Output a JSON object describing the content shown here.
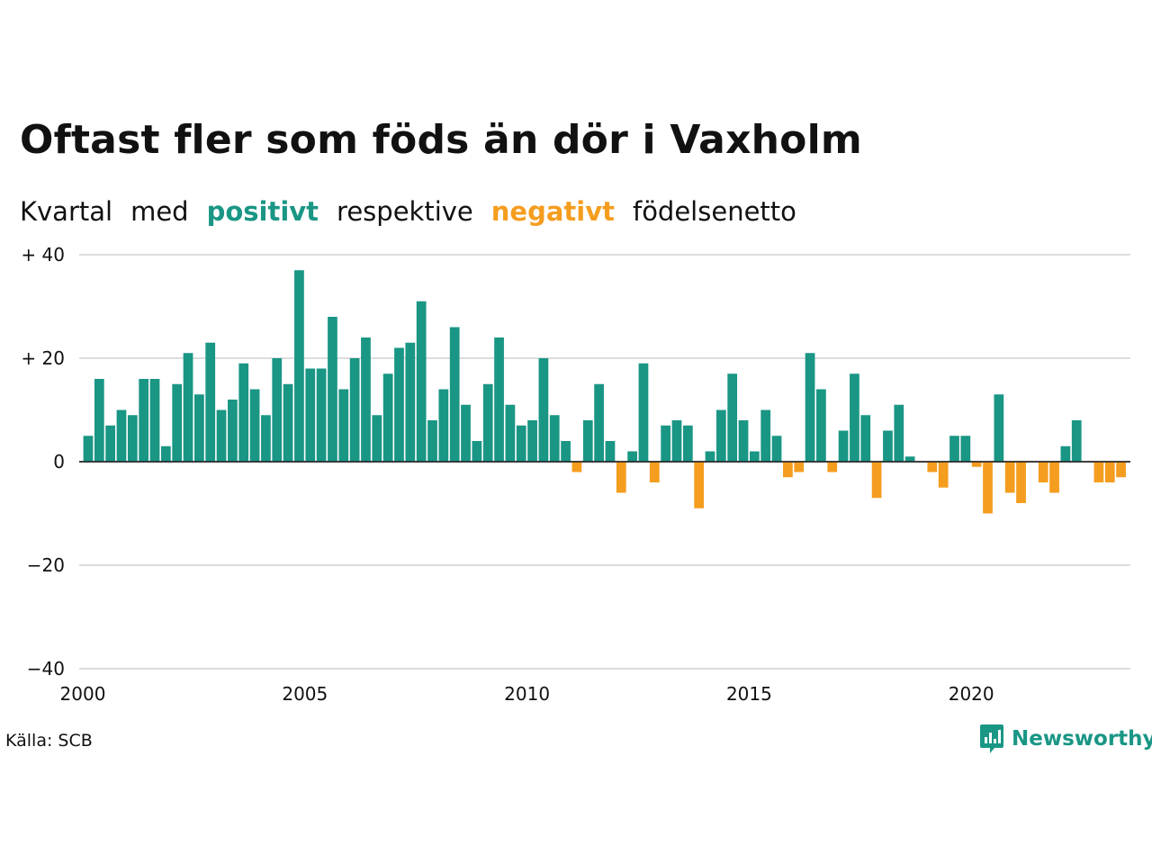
{
  "header": {
    "title": "Oftast fler som föds än dör i Vaxholm",
    "subtitle": {
      "part1": "Kvartal",
      "part2": "med",
      "positive": "positivt",
      "part3": "respektive",
      "negative": "negativt",
      "part4": "födelsenetto"
    }
  },
  "footer": {
    "source": "Källa: SCB",
    "logo_text": "Newsworthy"
  },
  "colors": {
    "positive": "#1a9685",
    "negative": "#f59d1f",
    "grid": "#dddddd",
    "zero_line": "#222222"
  },
  "chart_data": {
    "type": "bar",
    "title": "Oftast fler som föds än dör i Vaxholm",
    "subtitle": "Kvartal med positivt respektive negativt födelsenetto",
    "x_start": "2000 Q1",
    "x_ticks": [
      "2000",
      "2005",
      "2010",
      "2015",
      "2020"
    ],
    "y_ticks": [
      "+ 40",
      "+ 20",
      "0",
      "−20",
      "−40"
    ],
    "y_tick_values": [
      40,
      20,
      0,
      -20,
      -40
    ],
    "ylim": [
      -40,
      40
    ],
    "grid": true,
    "values": [
      5,
      16,
      7,
      10,
      9,
      16,
      16,
      3,
      15,
      21,
      13,
      23,
      10,
      12,
      19,
      14,
      9,
      20,
      15,
      37,
      18,
      18,
      28,
      14,
      20,
      24,
      9,
      17,
      22,
      23,
      31,
      8,
      14,
      26,
      11,
      4,
      15,
      24,
      11,
      7,
      8,
      20,
      9,
      4,
      -2,
      8,
      15,
      4,
      -6,
      2,
      19,
      -4,
      7,
      8,
      7,
      -9,
      2,
      10,
      17,
      8,
      2,
      10,
      5,
      -3,
      -2,
      21,
      14,
      -2,
      6,
      17,
      9,
      -7,
      6,
      11,
      1,
      0,
      -2,
      -5,
      5,
      5,
      -1,
      -10,
      13,
      -6,
      -8,
      0,
      -4,
      -6,
      3,
      8,
      0,
      -4,
      -4,
      -3
    ]
  }
}
